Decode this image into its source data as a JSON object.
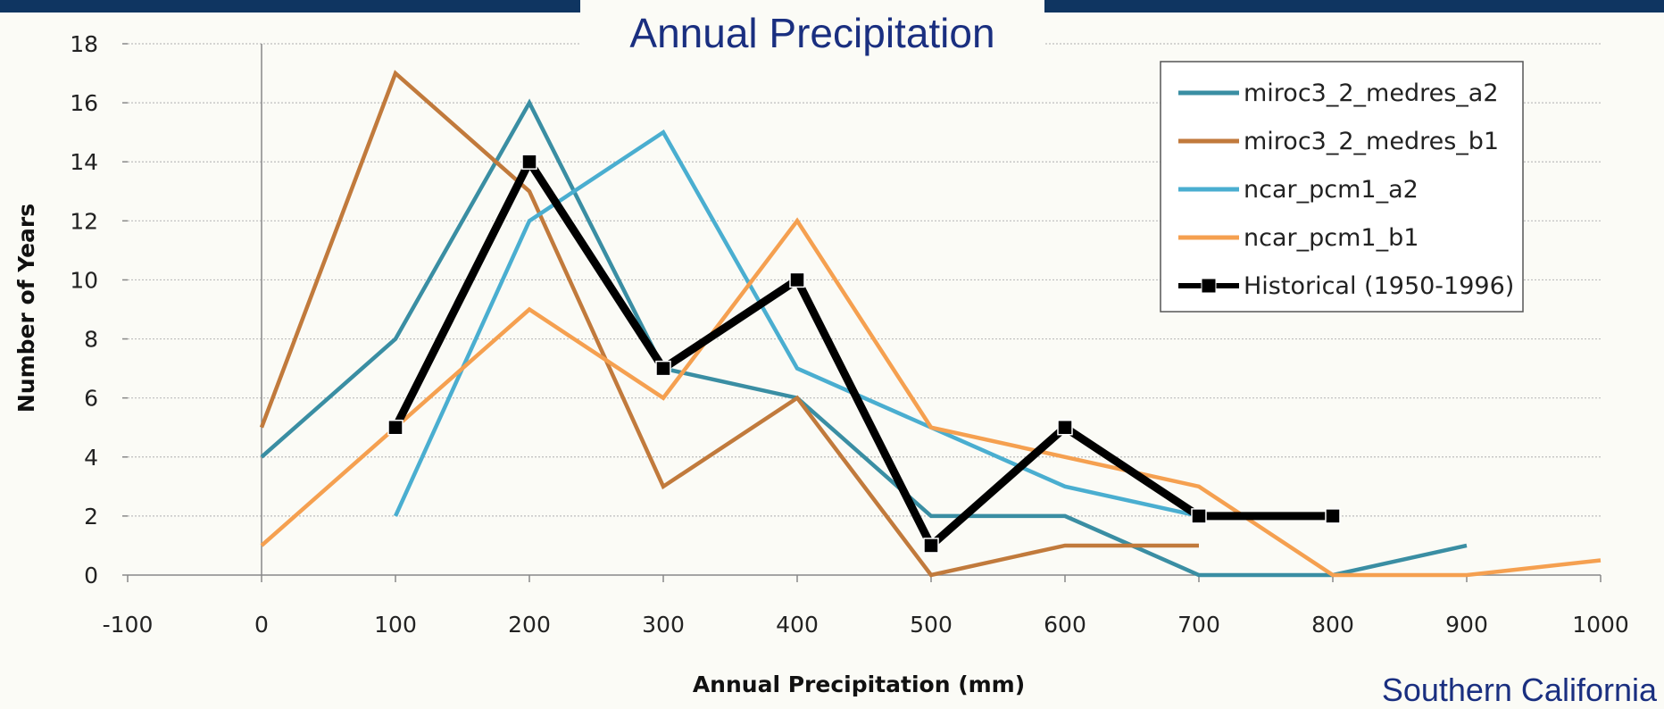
{
  "header": {
    "title": "Annual Precipitation",
    "region": "Southern California"
  },
  "colors": {
    "background": "#fbfbf6",
    "top_bar": "#0f3561",
    "title_text": "#1a2f80",
    "gridline": "#bdbdbd"
  },
  "chart_data": {
    "type": "line",
    "title": "Annual Precipitation",
    "xlabel": "Annual Precipitation (mm)",
    "ylabel": "Number of Years",
    "xlim": [
      -100,
      1000
    ],
    "ylim": [
      0,
      18
    ],
    "x_ticks": [
      -100,
      0,
      100,
      200,
      300,
      400,
      500,
      600,
      700,
      800,
      900,
      1000
    ],
    "y_ticks": [
      0,
      2,
      4,
      6,
      8,
      10,
      12,
      14,
      16,
      18
    ],
    "grid": "horizontal dotted",
    "legend_position": "top-right",
    "series": [
      {
        "name": "miroc3_2_medres_a2",
        "color": "#3a8ea3",
        "marker": "none",
        "x": [
          0,
          100,
          200,
          300,
          400,
          500,
          600,
          700,
          800,
          900
        ],
        "y": [
          4,
          8,
          16,
          7,
          6,
          2,
          2,
          0,
          0,
          1
        ]
      },
      {
        "name": "miroc3_2_medres_b1",
        "color": "#c17a3c",
        "marker": "none",
        "x": [
          0,
          100,
          200,
          300,
          400,
          500,
          600,
          700
        ],
        "y": [
          5,
          17,
          13,
          3,
          6,
          0,
          1,
          1
        ]
      },
      {
        "name": "ncar_pcm1_a2",
        "color": "#4aaed0",
        "marker": "none",
        "x": [
          100,
          200,
          300,
          400,
          500,
          600,
          700
        ],
        "y": [
          2,
          12,
          15,
          7,
          5,
          3,
          2
        ]
      },
      {
        "name": "ncar_pcm1_b1",
        "color": "#f5a050",
        "marker": "none",
        "x": [
          0,
          100,
          200,
          300,
          400,
          500,
          600,
          700,
          800,
          900,
          1000
        ],
        "y": [
          1,
          5,
          9,
          6,
          12,
          5,
          4,
          3,
          0,
          0,
          0.5
        ]
      },
      {
        "name": "Historical (1950-1996)",
        "color": "#000000",
        "marker": "square",
        "x": [
          100,
          200,
          300,
          400,
          500,
          600,
          700,
          800
        ],
        "y": [
          5,
          14,
          7,
          10,
          1,
          5,
          2,
          2
        ]
      }
    ]
  }
}
